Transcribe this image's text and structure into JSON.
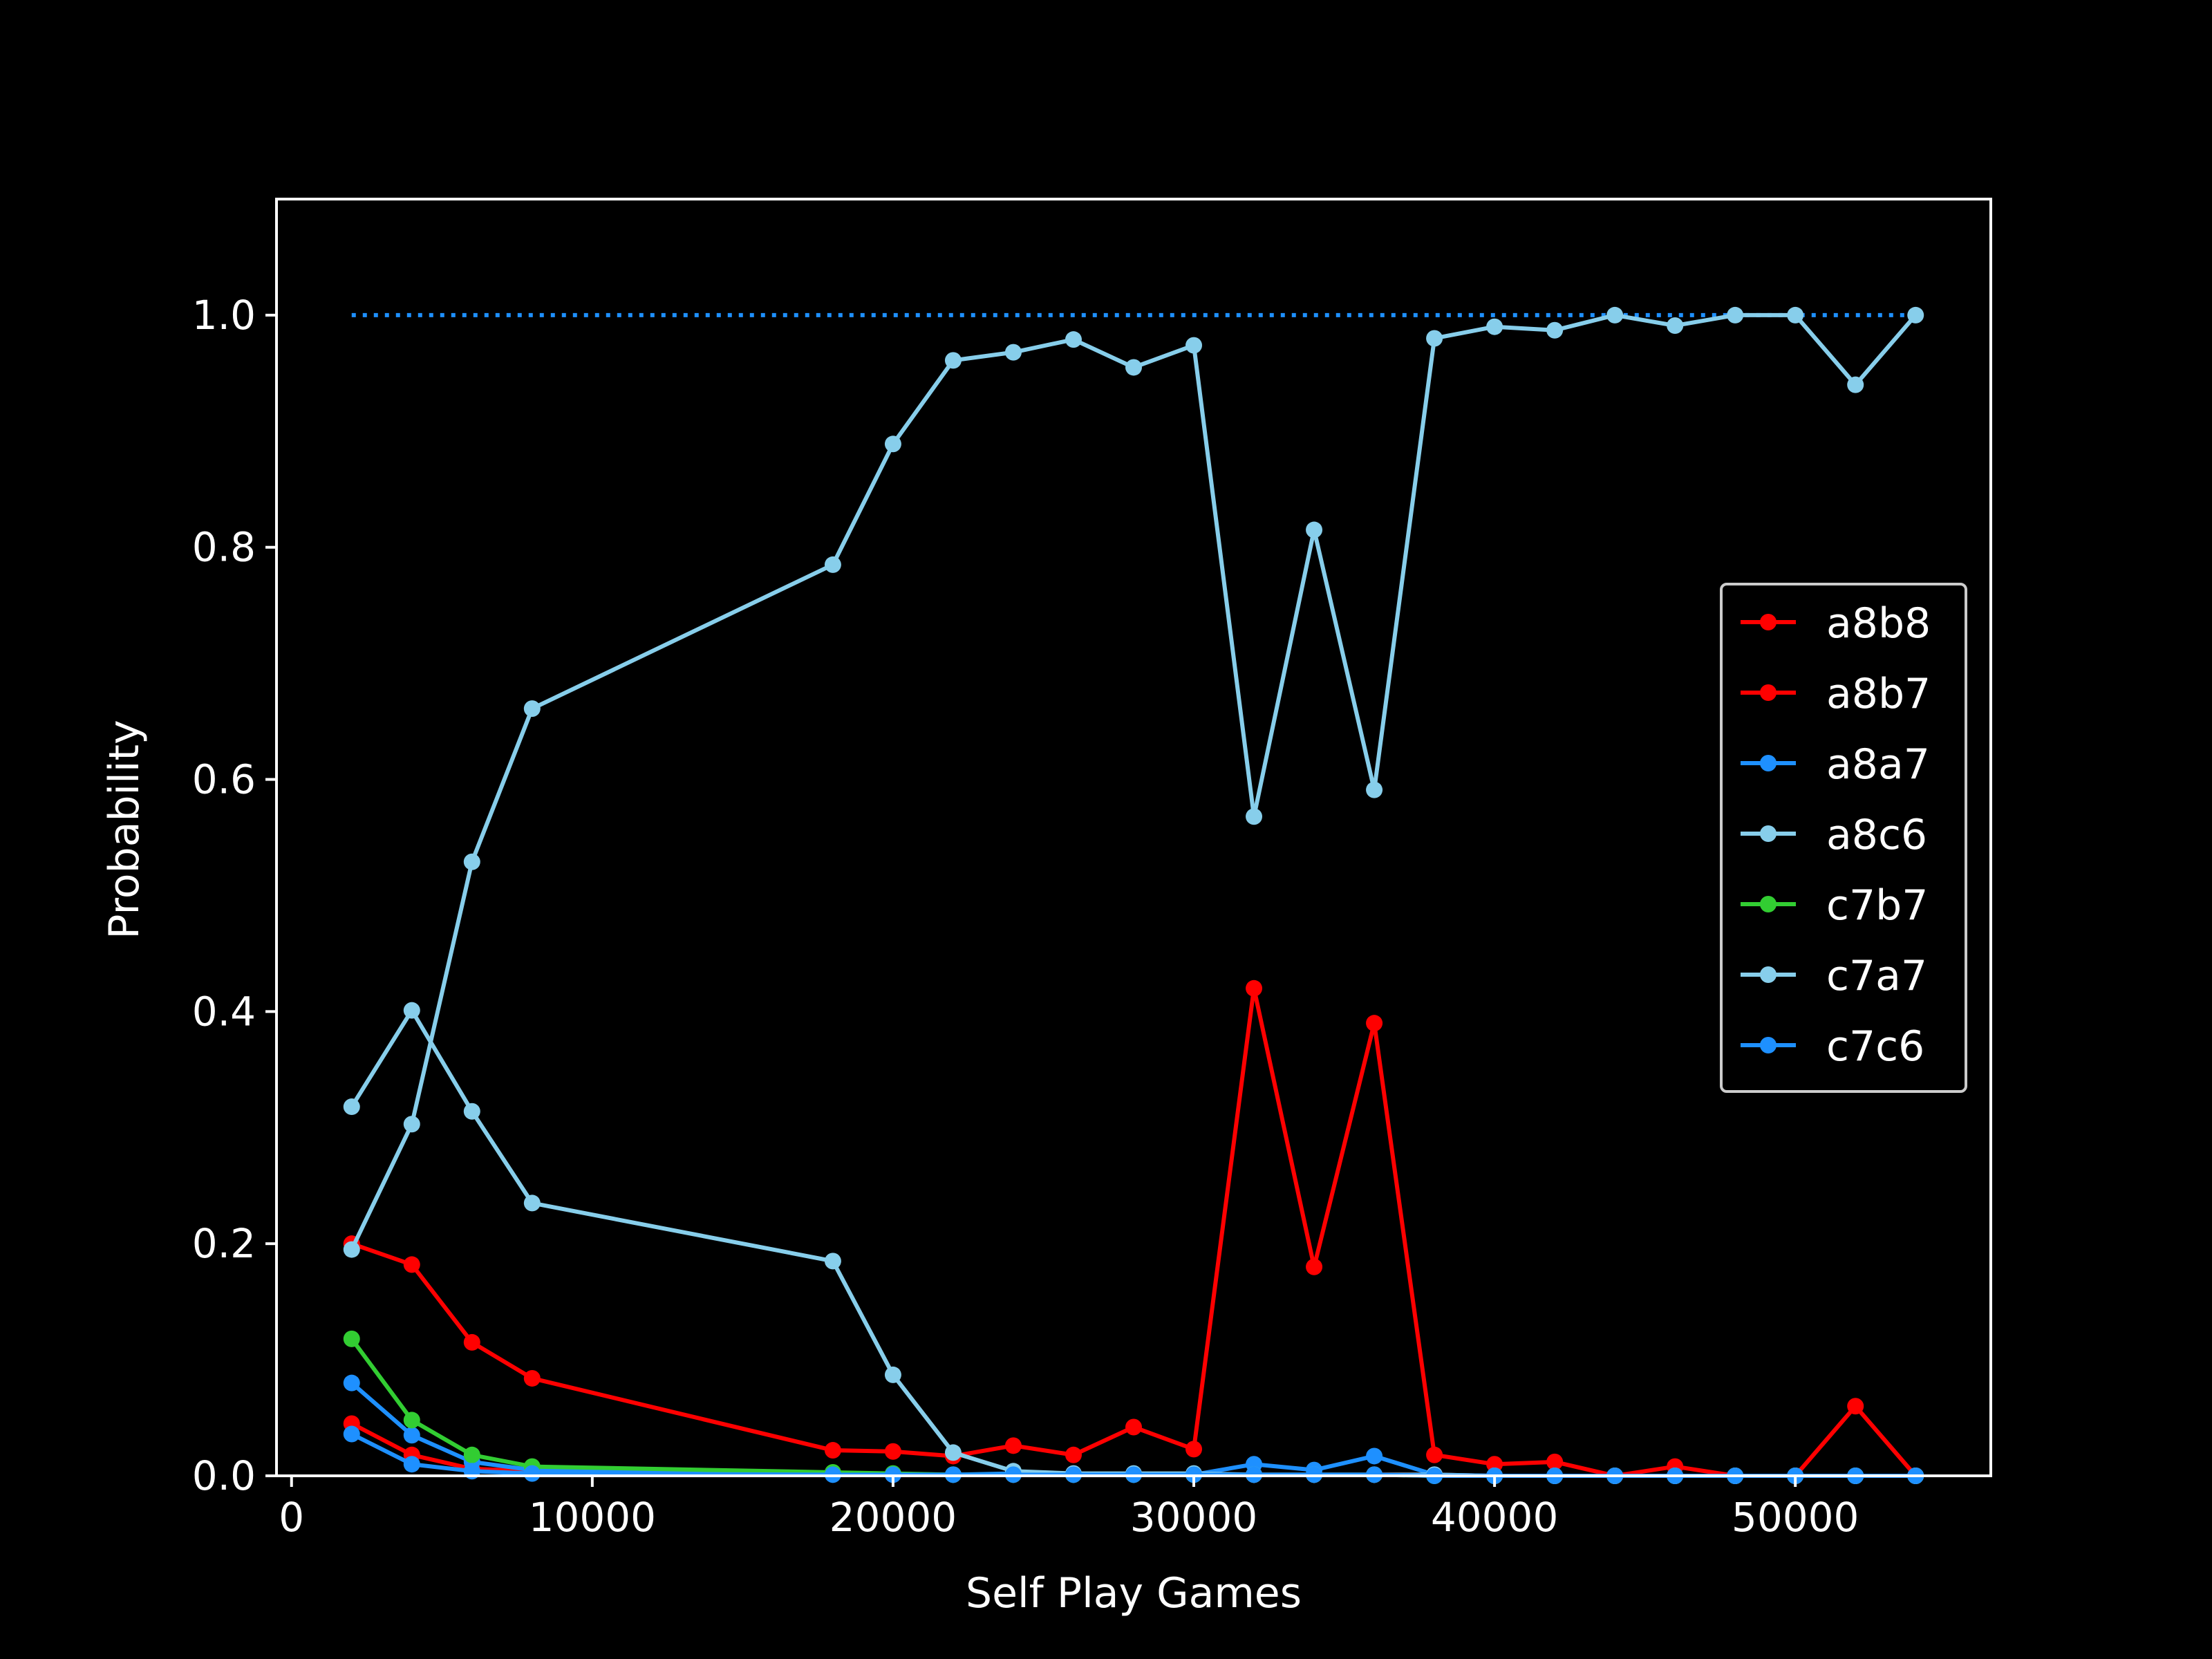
{
  "chart_data": {
    "type": "line",
    "xlabel": "Self Play Games",
    "ylabel": "Probability",
    "xlim": [
      -500,
      56500
    ],
    "ylim": [
      0,
      1.1
    ],
    "xticks": [
      0,
      10000,
      20000,
      30000,
      40000,
      50000
    ],
    "xtick_labels": [
      "0",
      "10000",
      "20000",
      "30000",
      "40000",
      "50000"
    ],
    "yticks": [
      0,
      0.2,
      0.4,
      0.6,
      0.8,
      1.0
    ],
    "ytick_labels": [
      "0.0",
      "0.2",
      "0.4",
      "0.6",
      "0.8",
      "1.0"
    ],
    "background": "#000000",
    "axis_color": "#ffffff",
    "legend_position": "center-right",
    "reference_line": {
      "y": 1.0,
      "x_range": [
        2000,
        54000
      ],
      "style": "dotted",
      "color": "#1e90ff"
    },
    "x": [
      2000,
      4000,
      6000,
      8000,
      18000,
      20000,
      22000,
      24000,
      26000,
      28000,
      30000,
      32000,
      34000,
      36000,
      38000,
      40000,
      42000,
      44000,
      46000,
      48000,
      50000,
      52000,
      54000
    ],
    "series": [
      {
        "name": "a8b8",
        "color": "#ff0000",
        "values": [
          0.2,
          0.182,
          0.115,
          0.084,
          0.022,
          0.021,
          0.017,
          0.026,
          0.018,
          0.042,
          0.023,
          0.42,
          0.18,
          0.39,
          0.018,
          0.01,
          0.012,
          0.0,
          0.008,
          0.0,
          0.0,
          0.06,
          0.0
        ]
      },
      {
        "name": "a8b7",
        "color": "#ff0000",
        "values": [
          0.045,
          0.018,
          0.006,
          0.004,
          0.002,
          0.001,
          0.001,
          0.001,
          0.001,
          0.001,
          0.001,
          0.001,
          0.001,
          0.001,
          0.001,
          0.0,
          0.0,
          0.0,
          0.0,
          0.0,
          0.0,
          0.0,
          0.0
        ]
      },
      {
        "name": "a8a7",
        "color": "#1e90ff",
        "values": [
          0.08,
          0.035,
          0.012,
          0.005,
          0.002,
          0.001,
          0.001,
          0.002,
          0.001,
          0.001,
          0.001,
          0.01,
          0.005,
          0.017,
          0.001,
          0.0,
          0.0,
          0.0,
          0.0,
          0.0,
          0.0,
          0.0,
          0.0
        ]
      },
      {
        "name": "a8c6",
        "color": "#87ceeb",
        "values": [
          0.195,
          0.303,
          0.529,
          0.661,
          0.785,
          0.889,
          0.961,
          0.968,
          0.979,
          0.955,
          0.974,
          0.568,
          0.815,
          0.591,
          0.98,
          0.99,
          0.987,
          1.0,
          0.991,
          1.0,
          1.0,
          0.94,
          1.0
        ]
      },
      {
        "name": "c7b7",
        "color": "#32cd32",
        "values": [
          0.118,
          0.048,
          0.018,
          0.008,
          0.003,
          0.002,
          0.001,
          0.001,
          0.001,
          0.001,
          0.001,
          0.001,
          0.001,
          0.001,
          0.0,
          0.0,
          0.0,
          0.0,
          0.0,
          0.0,
          0.0,
          0.0,
          0.0
        ]
      },
      {
        "name": "c7a7",
        "color": "#87ceeb",
        "values": [
          0.318,
          0.401,
          0.314,
          0.235,
          0.185,
          0.087,
          0.02,
          0.004,
          0.002,
          0.002,
          0.002,
          0.001,
          0.001,
          0.001,
          0.001,
          0.0,
          0.0,
          0.0,
          0.0,
          0.0,
          0.0,
          0.0,
          0.0
        ]
      },
      {
        "name": "c7c6",
        "color": "#1e90ff",
        "values": [
          0.036,
          0.01,
          0.004,
          0.002,
          0.001,
          0.001,
          0.001,
          0.001,
          0.001,
          0.001,
          0.001,
          0.001,
          0.001,
          0.001,
          0.0,
          0.0,
          0.0,
          0.0,
          0.0,
          0.0,
          0.0,
          0.0,
          0.0
        ]
      }
    ]
  }
}
